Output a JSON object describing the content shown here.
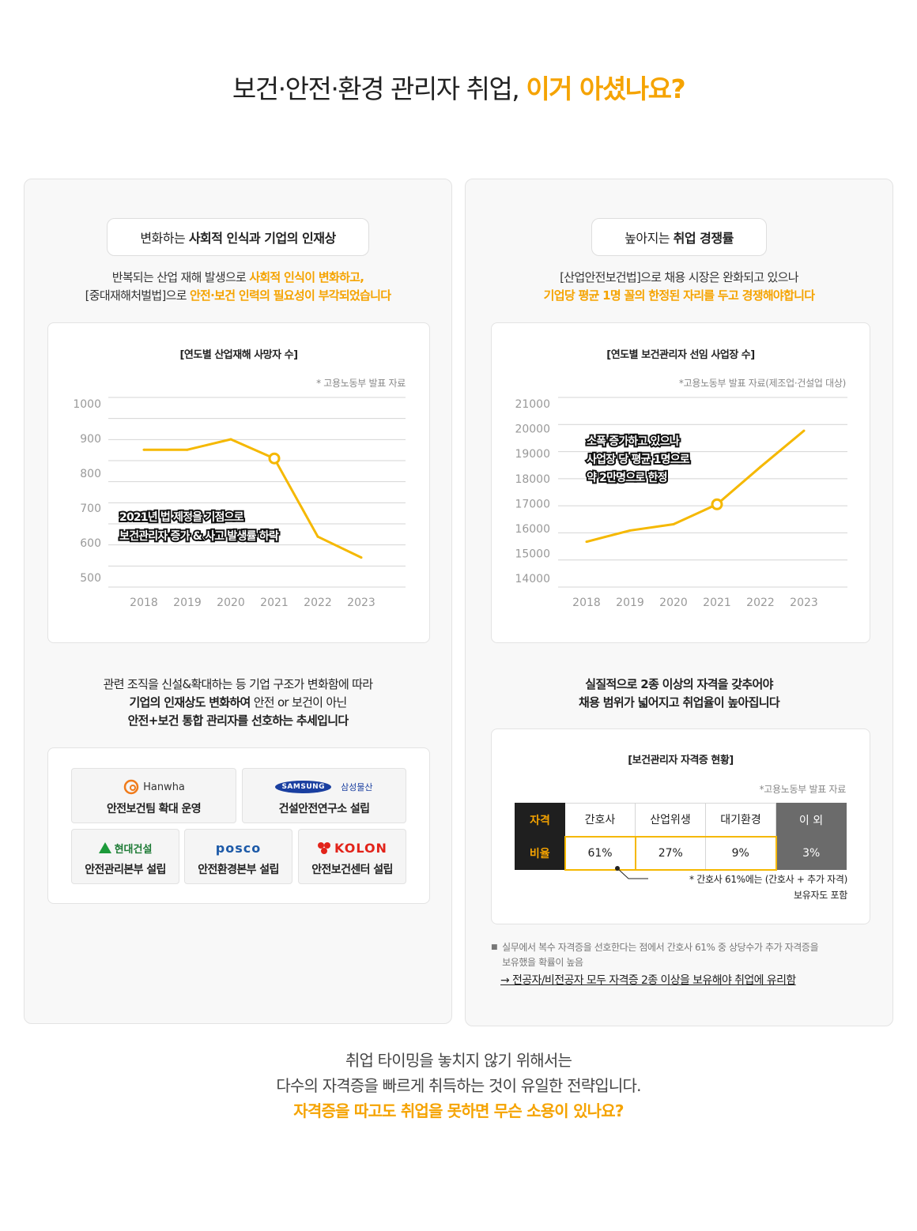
{
  "header": {
    "title_plain": "보건·안전·환경 관리자 취업,",
    "title_highlight": "이거 아셨나요?"
  },
  "colors": {
    "accent": "#f5a300",
    "line": "#f5b800",
    "dark": "#1f1f1f",
    "gray": "#6b6b6b"
  },
  "left_panel": {
    "pill_prefix": "변화하는",
    "pill_bold": "사회적 인식과 기업의 인재상",
    "intro_line1_plain": "반복되는 산업 재해 발생으로",
    "intro_line1_highlight": "사회적 인식이 변화하고,",
    "intro_line2_plain": "[중대재해처벌법]으로",
    "intro_line2_highlight": "안전·보건 인력의 필요성이 부각되었습니다",
    "chart_title": "[연도별 산업재해 사망자 수]",
    "chart_source": "* 고용노동부 발표 자료",
    "chart_annotation_line1": "2021년 법 제정을 기점으로",
    "chart_annotation_line2": "보건관리자 증가 & 사고 발생률 하락",
    "body_line1": "관련 조직을 신설&확대하는 등 기업 구조가 변화함에 따라",
    "body_line2_bold": "기업의 인재상도 변화하여",
    "body_line2_plain": "안전 or 보건이 아닌",
    "body_line3": "안전+보건 통합 관리자를 선호하는 추세입니다",
    "companies": [
      {
        "logo_text": "Hanwha",
        "logo_icon": "hanwha-swirl-icon",
        "caption": "안전보건팀 확대 운영"
      },
      {
        "logo_text": "SAMSUNG",
        "logo_sub": "삼성물산",
        "logo_icon": "samsung-ellipse-logo",
        "caption": "건설안전연구소 설립"
      },
      {
        "logo_text": "현대건설",
        "logo_icon": "hyundai-triangle-icon",
        "caption": "안전관리본부 설립"
      },
      {
        "logo_text": "posco",
        "logo_icon": "posco-wordmark",
        "caption": "안전환경본부 설립"
      },
      {
        "logo_text": "KOLON",
        "logo_icon": "kolon-mark-icon",
        "caption": "안전보건센터 설립"
      }
    ]
  },
  "right_panel": {
    "pill_prefix": "높아지는",
    "pill_bold": "취업 경쟁률",
    "intro_line1": "[산업안전보건법]으로 채용 시장은 완화되고 있으나",
    "intro_line2_highlight": "기업당 평균 1명 꼴의 한정된 자리를 두고 경쟁해야합니다",
    "chart_title": "[연도별 보건관리자 선임 사업장 수]",
    "chart_source": "*고용노동부 발표 자료(제조업·건설업 대상)",
    "chart_annotation_line1": "소폭 증가하고 있으나",
    "chart_annotation_line2": "사업장 당 평균 1명으로",
    "chart_annotation_line3": "약 2만명으로 한정",
    "body_line1": "실질적으로 2종 이상의 자격을 갖추어야",
    "body_line2": "채용 범위가 넓어지고 취업율이 높아집니다",
    "table_title": "[보건관리자 자격증 현황]",
    "table_source": "*고용노동부 발표 자료",
    "table_row1_head": "자격",
    "table_row2_head": "비율",
    "table_headers": [
      "간호사",
      "산업위생",
      "대기환경",
      "이 외"
    ],
    "table_values": [
      "61%",
      "27%",
      "9%",
      "3%"
    ],
    "table_note_line1": "* 간호사 61%에는 (간호사 + 추가 자격)",
    "table_note_line2": "보유자도 포함",
    "footnote_bullet": "■",
    "footnote_line1": "실무에서 복수 자격증을 선호한다는 점에서 간호사 61% 중 상당수가 추가 자격증을",
    "footnote_line2": "보유했을 확률이 높음",
    "footnote_conclusion": "→ 전공자/비전공자 모두 자격증 2종 이상을 보유해야 취업에 유리함"
  },
  "bottom": {
    "line1": "취업 타이밍을 놓치지 않기 위해서는",
    "line2": "다수의 자격증을 빠르게 취득하는 것이 유일한 전략입니다.",
    "line3_highlight": "자격증을 따고도 취업을 못하면 무슨 소용이 있나요?"
  },
  "chart_data": [
    {
      "type": "line",
      "title": "[연도별 산업재해 사망자 수]",
      "x": [
        "2018",
        "2019",
        "2020",
        "2021",
        "2022",
        "2023"
      ],
      "y_ticks": [
        "1000",
        "900",
        "800",
        "700",
        "600",
        "500"
      ],
      "series": [
        {
          "values": [
            870,
            870,
            900,
            845,
            620,
            560
          ]
        }
      ],
      "ylim": [
        500,
        1000
      ],
      "highlight_index": 3,
      "grid": true
    },
    {
      "type": "line",
      "title": "[연도별 보건관리자 선임 사업장 수]",
      "x": [
        "2018",
        "2019",
        "2020",
        "2021",
        "2022",
        "2023"
      ],
      "y_ticks": [
        "21000",
        "20000",
        "19000",
        "18000",
        "17000",
        "16000",
        "15000",
        "14000"
      ],
      "series": [
        {
          "values": [
            15500,
            15950,
            16200,
            17000,
            18500,
            19950
          ]
        }
      ],
      "ylim": [
        14000,
        21000
      ],
      "highlight_index": 3,
      "grid": true
    }
  ]
}
